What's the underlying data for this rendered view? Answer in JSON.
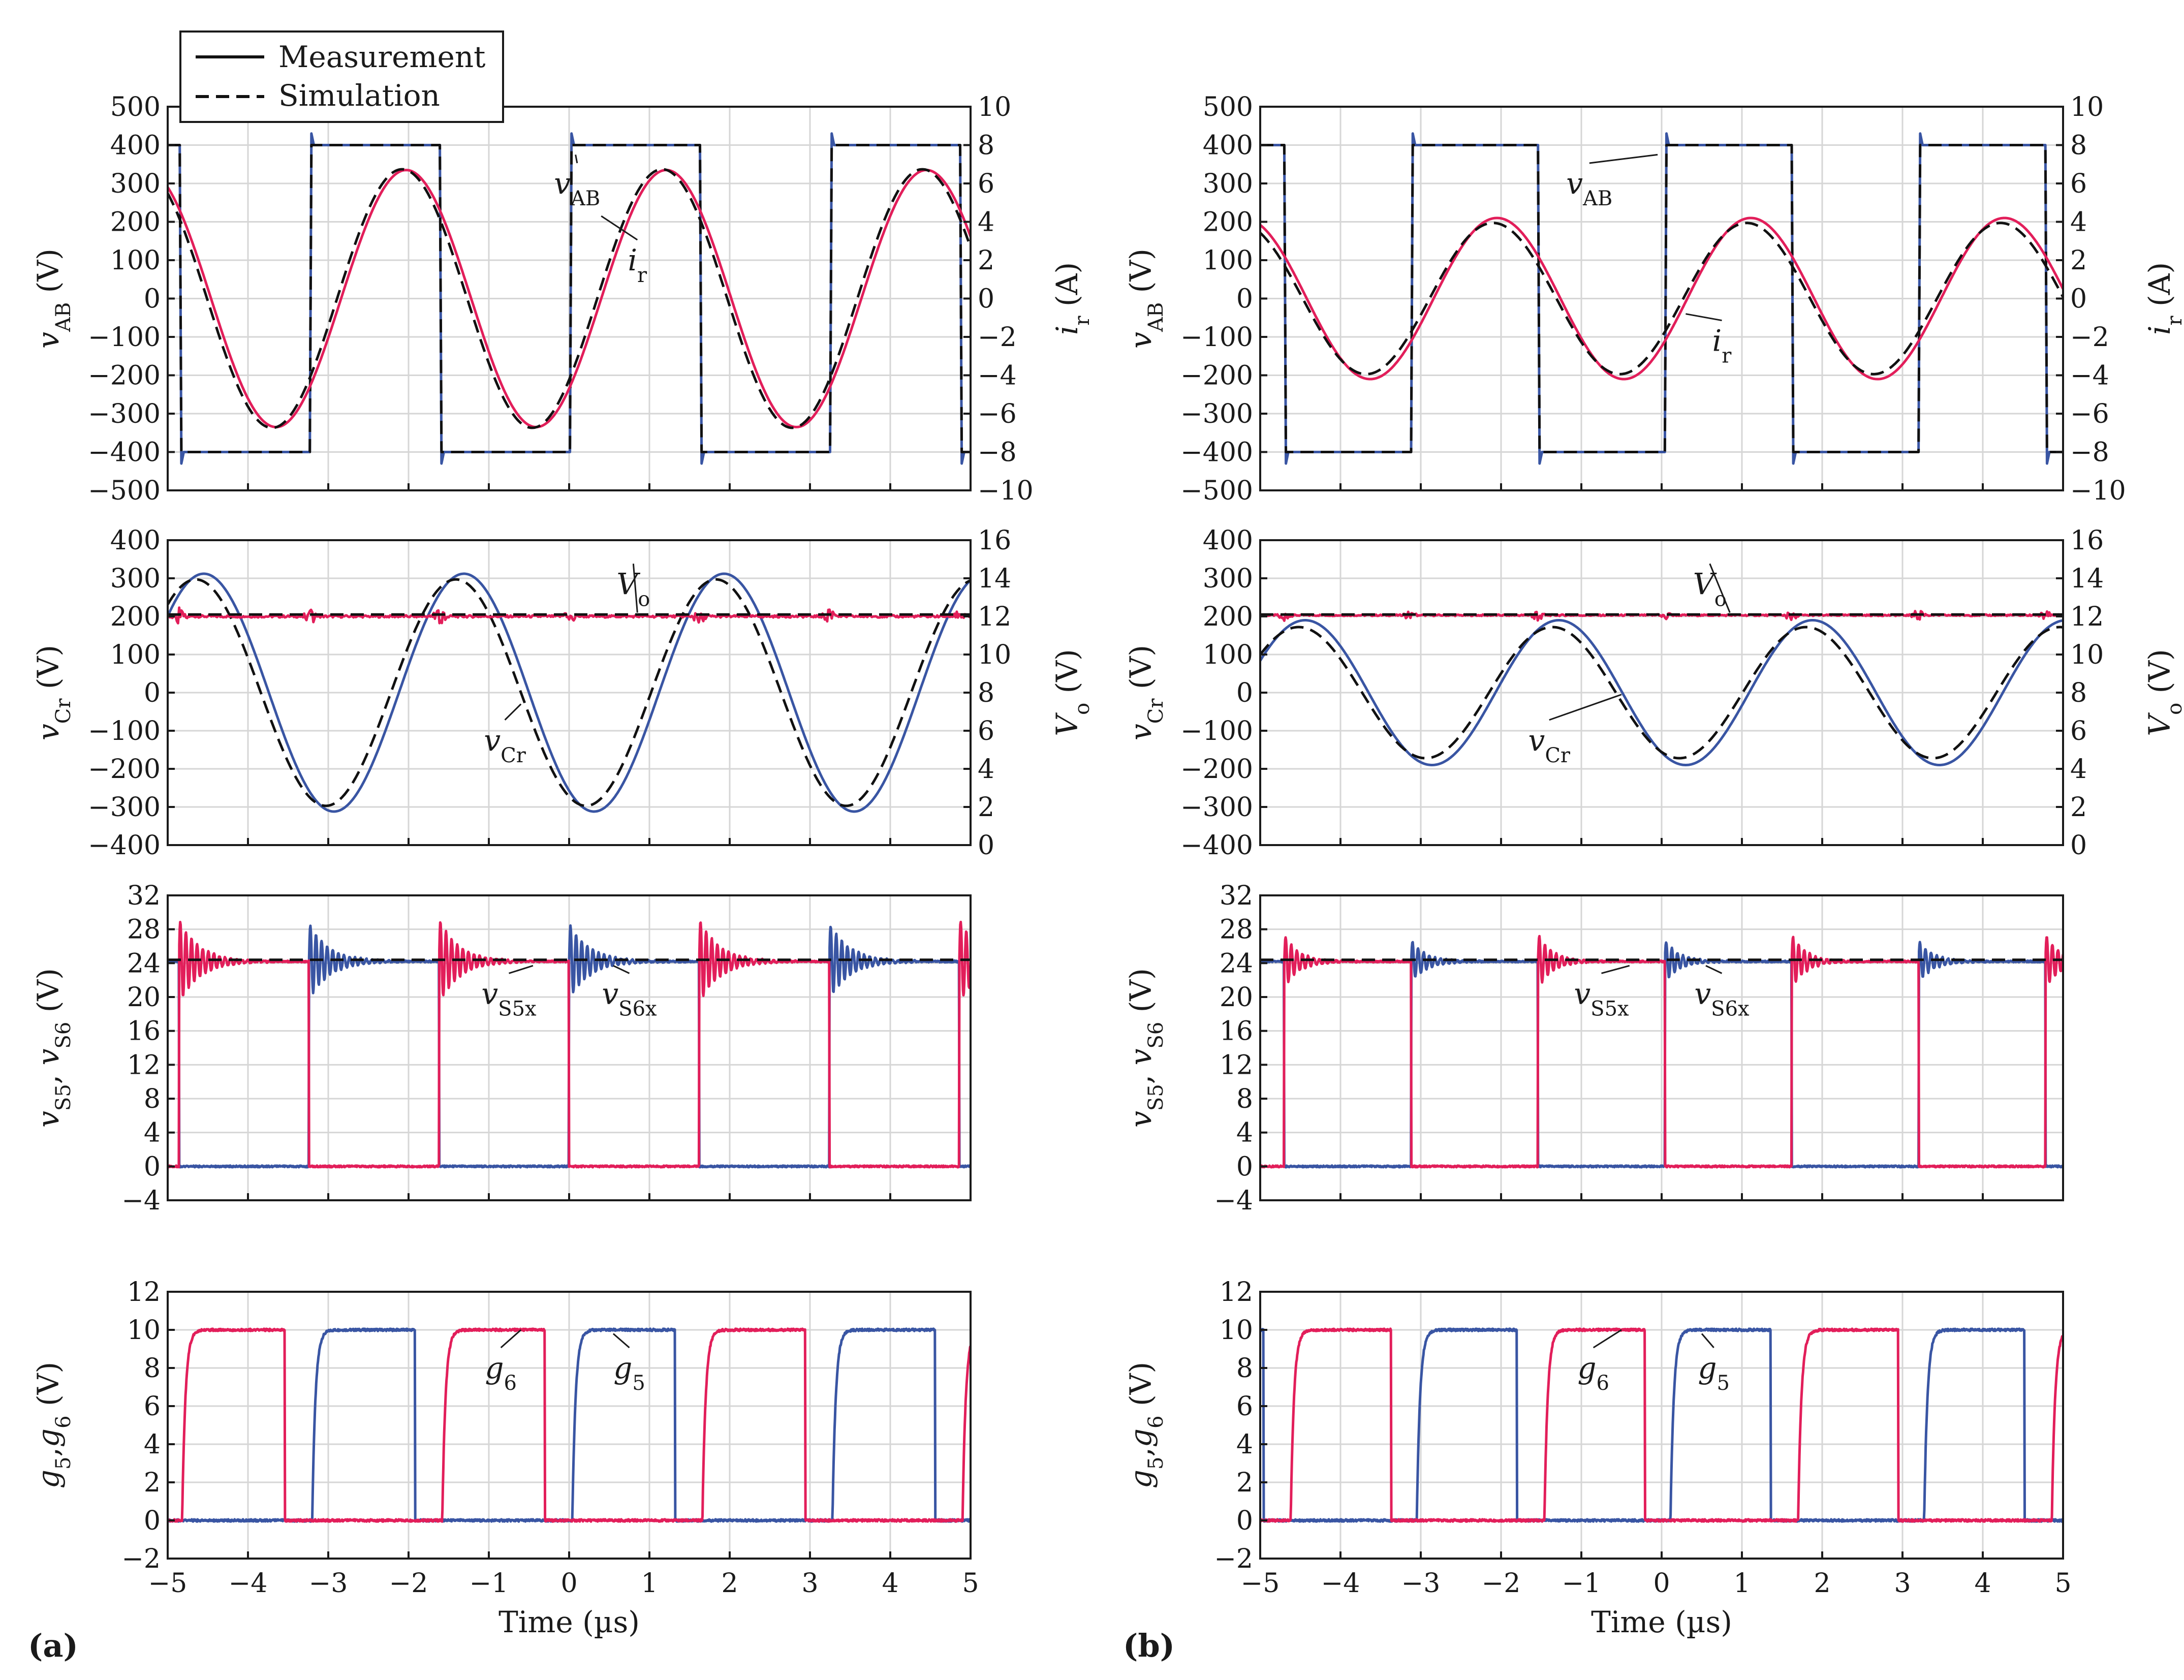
{
  "chart_data": [
    {
      "type": "line",
      "panel": "a",
      "row": 1,
      "title": "",
      "xlabel": "",
      "x_range": [
        -5,
        5
      ],
      "x_ticks": [
        -5,
        -4,
        -3,
        -2,
        -1,
        0,
        1,
        2,
        3,
        4,
        5
      ],
      "y_left": {
        "label": "vAB (V)",
        "base": "v",
        "sub": "AB",
        "unit": " (V)",
        "range": [
          -500,
          500
        ],
        "ticks": [
          -500,
          -400,
          -300,
          -200,
          -100,
          0,
          100,
          200,
          300,
          400,
          500
        ]
      },
      "y_right": {
        "label": "ir (A)",
        "base": "i",
        "sub": "r",
        "unit": " (A)",
        "range": [
          -10,
          10
        ],
        "ticks": [
          -10,
          -8,
          -6,
          -4,
          -2,
          0,
          2,
          4,
          6,
          8,
          10
        ]
      },
      "series": [
        {
          "name": "vAB measurement",
          "kind": "square",
          "axis": "left",
          "amplitude": 400,
          "period": 3.24,
          "edge": -4.85,
          "first_level": 400,
          "color": "#3955a3",
          "dashed": false,
          "ringing": 30
        },
        {
          "name": "vAB simulation",
          "kind": "square",
          "axis": "left",
          "amplitude": 403,
          "period": 3.24,
          "edge": -4.85,
          "first_level": 400,
          "color": "#111111",
          "dashed": true
        },
        {
          "name": "ir measurement",
          "kind": "sine",
          "axis": "left",
          "amplitude": 335,
          "period": 3.24,
          "peak_at": -2.03,
          "color": "#e21e5a",
          "dashed": false
        },
        {
          "name": "ir simulation",
          "kind": "sine",
          "axis": "left",
          "amplitude": 337,
          "period": 3.24,
          "peak_at": -2.08,
          "color": "#111111",
          "dashed": true
        }
      ],
      "annotations": [
        {
          "base": "v",
          "sub": "AB",
          "at": [
            0.1,
            300
          ],
          "arrow_to": [
            0.08,
            375
          ]
        },
        {
          "base": "i",
          "sub": "r",
          "at": [
            0.85,
            100
          ],
          "arrow_to": [
            0.4,
            215
          ]
        }
      ]
    },
    {
      "type": "line",
      "panel": "a",
      "row": 2,
      "xlabel": "",
      "x_range": [
        -5,
        5
      ],
      "x_ticks": [
        -5,
        -4,
        -3,
        -2,
        -1,
        0,
        1,
        2,
        3,
        4,
        5
      ],
      "y_left": {
        "label": "vCr (V)",
        "base": "v",
        "sub": "Cr",
        "unit": " (V)",
        "range": [
          -400,
          400
        ],
        "ticks": [
          -400,
          -300,
          -200,
          -100,
          0,
          100,
          200,
          300,
          400
        ]
      },
      "y_right": {
        "label": "Vo (V)",
        "base": "V",
        "sub": "o",
        "unit": " (V)",
        "range": [
          0,
          16
        ],
        "ticks": [
          0,
          2,
          4,
          6,
          8,
          10,
          12,
          14,
          16
        ]
      },
      "series": [
        {
          "name": "vCr measurement",
          "kind": "sine",
          "axis": "left",
          "amplitude": 312,
          "period": 3.24,
          "peak_at": -4.55,
          "color": "#3955a3",
          "dashed": false
        },
        {
          "name": "vCr simulation",
          "kind": "sine",
          "axis": "left",
          "amplitude": 297,
          "period": 3.24,
          "peak_at": -4.65,
          "color": "#111111",
          "dashed": true
        },
        {
          "name": "Vo measurement",
          "kind": "flat",
          "axis": "left",
          "level": 200,
          "color": "#e21e5a",
          "dashed": false,
          "noise": 6,
          "bursts": [
            -4.85,
            -3.23,
            -1.61,
            0.01,
            1.63,
            3.25,
            4.87
          ],
          "burst_amp": 22
        },
        {
          "name": "Vo simulation",
          "kind": "flat",
          "axis": "left",
          "level": 205,
          "slope": 1.0,
          "color": "#111111",
          "dashed": true
        }
      ],
      "annotations": [
        {
          "base": "V",
          "sub": "o",
          "at": [
            0.8,
            285
          ],
          "arrow_to": [
            0.85,
            210
          ]
        },
        {
          "base": "v",
          "sub": "Cr",
          "at": [
            -0.8,
            -125
          ],
          "arrow_to": [
            -0.6,
            -30
          ]
        }
      ]
    },
    {
      "type": "line",
      "panel": "a",
      "row": 3,
      "xlabel": "",
      "x_range": [
        -5,
        5
      ],
      "x_ticks": [
        -5,
        -4,
        -3,
        -2,
        -1,
        0,
        1,
        2,
        3,
        4,
        5
      ],
      "y_left": {
        "label": "vS5, vS6 (V)",
        "base": "v",
        "sub": "S5",
        "mid": ", ",
        "base2": "v",
        "sub2": "S6",
        "unit": " (V)",
        "range": [
          -4,
          32
        ],
        "ticks": [
          -4,
          0,
          4,
          8,
          12,
          16,
          20,
          24,
          28,
          32
        ]
      },
      "series": [
        {
          "name": "vS5 measurement",
          "kind": "switch",
          "axis": "left",
          "high": 24.2,
          "low": 0,
          "period": 3.24,
          "rise_at": -3.24,
          "high_width": 1.62,
          "color": "#3955a3",
          "dashed": false,
          "ring_amp": 4.5,
          "ring_decay": 0.25
        },
        {
          "name": "vS6 measurement",
          "kind": "switch",
          "axis": "left",
          "high": 24.2,
          "low": 0,
          "period": 3.24,
          "rise_at": -4.86,
          "high_width": 1.62,
          "color": "#e21e5a",
          "dashed": false,
          "ring_amp": 5,
          "ring_decay": 0.25
        },
        {
          "name": "vS simulation",
          "kind": "flat",
          "axis": "left",
          "level": 24.4,
          "color": "#111111",
          "dashed": true
        }
      ],
      "annotations": [
        {
          "base": "v",
          "sub": "S5x",
          "at": [
            -0.75,
            20.4
          ],
          "arrow_to": [
            -0.45,
            23.7
          ]
        },
        {
          "base": "v",
          "sub": "S6x",
          "at": [
            0.75,
            20.4
          ],
          "arrow_to": [
            0.55,
            23.7
          ]
        }
      ]
    },
    {
      "type": "line",
      "panel": "a",
      "row": 4,
      "xlabel": "Time (µs)",
      "x_range": [
        -5,
        5
      ],
      "x_ticks": [
        -5,
        -4,
        -3,
        -2,
        -1,
        0,
        1,
        2,
        3,
        4,
        5
      ],
      "y_left": {
        "label": "g5, g6 (V)",
        "base": "g",
        "sub": "5",
        "mid": ",",
        "base2": "g",
        "sub2": "6",
        "unit": " (V)",
        "range": [
          -2,
          12
        ],
        "ticks": [
          -2,
          0,
          2,
          4,
          6,
          8,
          10,
          12
        ]
      },
      "series": [
        {
          "name": "g5 gate",
          "kind": "gate",
          "axis": "left",
          "high": 10,
          "low": 0,
          "period": 3.24,
          "rise_at": -3.2,
          "high_width": 1.28,
          "color": "#3955a3",
          "dashed": false
        },
        {
          "name": "g6 gate",
          "kind": "gate",
          "axis": "left",
          "high": 10,
          "low": 0,
          "period": 3.24,
          "rise_at": -4.82,
          "high_width": 1.28,
          "color": "#e21e5a",
          "dashed": false
        }
      ],
      "annotations": [
        {
          "base": "g",
          "sub": "6",
          "at": [
            -0.85,
            8.0
          ],
          "arrow_to": [
            -0.6,
            10.0
          ]
        },
        {
          "base": "g",
          "sub": "5",
          "at": [
            0.75,
            8.0
          ],
          "arrow_to": [
            0.55,
            9.8
          ]
        }
      ]
    },
    {
      "type": "line",
      "panel": "b",
      "row": 1,
      "xlabel": "",
      "x_range": [
        -5,
        5
      ],
      "x_ticks": [
        -5,
        -4,
        -3,
        -2,
        -1,
        0,
        1,
        2,
        3,
        4,
        5
      ],
      "y_left": {
        "label": "vAB (V)",
        "base": "v",
        "sub": "AB",
        "unit": " (V)",
        "range": [
          -500,
          500
        ],
        "ticks": [
          -500,
          -400,
          -300,
          -200,
          -100,
          0,
          100,
          200,
          300,
          400,
          500
        ]
      },
      "y_right": {
        "label": "ir (A)",
        "base": "i",
        "sub": "r",
        "unit": " (A)",
        "range": [
          -10,
          10
        ],
        "ticks": [
          -10,
          -8,
          -6,
          -4,
          -2,
          0,
          2,
          4,
          6,
          8,
          10
        ]
      },
      "series": [
        {
          "name": "vAB measurement",
          "kind": "square",
          "axis": "left",
          "amplitude": 400,
          "period": 3.16,
          "edge": -4.7,
          "first_level": 400,
          "color": "#3955a3",
          "dashed": false,
          "ringing": 30
        },
        {
          "name": "vAB simulation",
          "kind": "square",
          "axis": "left",
          "amplitude": 403,
          "period": 3.16,
          "edge": -4.7,
          "first_level": 400,
          "color": "#111111",
          "dashed": true
        },
        {
          "name": "ir measurement",
          "kind": "sine",
          "axis": "left",
          "amplitude": 210,
          "period": 3.16,
          "peak_at": -2.05,
          "color": "#e21e5a",
          "dashed": false
        },
        {
          "name": "ir simulation",
          "kind": "sine",
          "axis": "left",
          "amplitude": 197,
          "period": 3.16,
          "peak_at": -2.1,
          "color": "#111111",
          "dashed": true
        }
      ],
      "annotations": [
        {
          "base": "v",
          "sub": "AB",
          "at": [
            -0.9,
            300
          ],
          "arrow_to": [
            -0.05,
            375
          ]
        },
        {
          "base": "i",
          "sub": "r",
          "at": [
            0.75,
            -110
          ],
          "arrow_to": [
            0.3,
            -40
          ]
        }
      ]
    },
    {
      "type": "line",
      "panel": "b",
      "row": 2,
      "xlabel": "",
      "x_range": [
        -5,
        5
      ],
      "x_ticks": [
        -5,
        -4,
        -3,
        -2,
        -1,
        0,
        1,
        2,
        3,
        4,
        5
      ],
      "y_left": {
        "label": "vCr (V)",
        "base": "v",
        "sub": "Cr",
        "unit": " (V)",
        "range": [
          -400,
          400
        ],
        "ticks": [
          -400,
          -300,
          -200,
          -100,
          0,
          100,
          200,
          300,
          400
        ]
      },
      "y_right": {
        "label": "Vo (V)",
        "base": "V",
        "sub": "o",
        "unit": " (V)",
        "range": [
          0,
          16
        ],
        "ticks": [
          0,
          2,
          4,
          6,
          8,
          10,
          12,
          14,
          16
        ]
      },
      "series": [
        {
          "name": "vCr measurement",
          "kind": "sine",
          "axis": "left",
          "amplitude": 190,
          "period": 3.16,
          "peak_at": -4.44,
          "color": "#3955a3",
          "dashed": false
        },
        {
          "name": "vCr simulation",
          "kind": "sine",
          "axis": "left",
          "amplitude": 172,
          "period": 3.16,
          "peak_at": -4.52,
          "color": "#111111",
          "dashed": true
        },
        {
          "name": "Vo measurement",
          "kind": "flat",
          "axis": "left",
          "level": 203,
          "color": "#e21e5a",
          "dashed": false,
          "noise": 4,
          "bursts": [
            -4.7,
            -3.12,
            -1.54,
            0.04,
            1.62,
            3.2,
            4.78
          ],
          "burst_amp": 15
        },
        {
          "name": "Vo simulation",
          "kind": "flat",
          "axis": "left",
          "level": 205,
          "color": "#111111",
          "dashed": true
        }
      ],
      "annotations": [
        {
          "base": "V",
          "sub": "o",
          "at": [
            0.6,
            285
          ],
          "arrow_to": [
            0.85,
            210
          ]
        },
        {
          "base": "v",
          "sub": "Cr",
          "at": [
            -1.4,
            -125
          ],
          "arrow_to": [
            -0.5,
            -5
          ]
        }
      ]
    },
    {
      "type": "line",
      "panel": "b",
      "row": 3,
      "xlabel": "",
      "x_range": [
        -5,
        5
      ],
      "x_ticks": [
        -5,
        -4,
        -3,
        -2,
        -1,
        0,
        1,
        2,
        3,
        4,
        5
      ],
      "y_left": {
        "label": "vS5, vS6 (V)",
        "base": "v",
        "sub": "S5",
        "mid": ", ",
        "base2": "v",
        "sub2": "S6",
        "unit": " (V)",
        "range": [
          -4,
          32
        ],
        "ticks": [
          -4,
          0,
          4,
          8,
          12,
          16,
          20,
          24,
          28,
          32
        ]
      },
      "series": [
        {
          "name": "vS5 measurement",
          "kind": "switch",
          "axis": "left",
          "high": 24.2,
          "low": 0,
          "period": 3.16,
          "rise_at": -3.12,
          "high_width": 1.58,
          "color": "#3955a3",
          "dashed": false,
          "ring_amp": 2.5,
          "ring_decay": 0.18
        },
        {
          "name": "vS6 measurement",
          "kind": "switch",
          "axis": "left",
          "high": 24.2,
          "low": 0,
          "period": 3.16,
          "rise_at": -4.7,
          "high_width": 1.58,
          "color": "#e21e5a",
          "dashed": false,
          "ring_amp": 3.2,
          "ring_decay": 0.18
        },
        {
          "name": "vS simulation",
          "kind": "flat",
          "axis": "left",
          "level": 24.4,
          "color": "#111111",
          "dashed": true
        }
      ],
      "annotations": [
        {
          "base": "v",
          "sub": "S5x",
          "at": [
            -0.75,
            20.4
          ],
          "arrow_to": [
            -0.4,
            23.7
          ]
        },
        {
          "base": "v",
          "sub": "S6x",
          "at": [
            0.75,
            20.4
          ],
          "arrow_to": [
            0.55,
            23.7
          ]
        }
      ]
    },
    {
      "type": "line",
      "panel": "b",
      "row": 4,
      "xlabel": "Time (µs)",
      "x_range": [
        -5,
        5
      ],
      "x_ticks": [
        -5,
        -4,
        -3,
        -2,
        -1,
        0,
        1,
        2,
        3,
        4,
        5
      ],
      "y_left": {
        "label": "g5, g6 (V)",
        "base": "g",
        "sub": "5",
        "mid": ",",
        "base2": "g",
        "sub2": "6",
        "unit": " (V)",
        "range": [
          -2,
          12
        ],
        "ticks": [
          -2,
          0,
          2,
          4,
          6,
          8,
          10,
          12
        ]
      },
      "series": [
        {
          "name": "g5 gate",
          "kind": "gate",
          "axis": "left",
          "high": 10,
          "low": 0,
          "period": 3.16,
          "rise_at": -3.05,
          "high_width": 1.25,
          "color": "#3955a3",
          "dashed": false
        },
        {
          "name": "g6 gate",
          "kind": "gate",
          "axis": "left",
          "high": 10,
          "low": 0,
          "period": 3.16,
          "rise_at": -4.62,
          "high_width": 1.25,
          "color": "#e21e5a",
          "dashed": false
        }
      ],
      "annotations": [
        {
          "base": "g",
          "sub": "6",
          "at": [
            -0.85,
            8.0
          ],
          "arrow_to": [
            -0.5,
            10.0
          ]
        },
        {
          "base": "g",
          "sub": "5",
          "at": [
            0.65,
            8.0
          ],
          "arrow_to": [
            0.5,
            9.8
          ]
        }
      ]
    }
  ],
  "legend": {
    "entries": [
      {
        "label": "Measurement",
        "style": "solid"
      },
      {
        "label": "Simulation",
        "style": "dashed"
      }
    ]
  },
  "panel_labels": {
    "a": "(a)",
    "b": "(b)"
  },
  "colors": {
    "blue": "#3955a3",
    "pink": "#e21e5a",
    "sim": "#111111",
    "grid": "#d6d6d6",
    "axis": "#1a1a1a"
  }
}
